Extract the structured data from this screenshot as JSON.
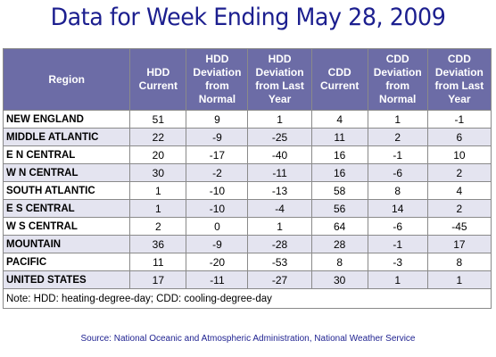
{
  "title": "Data for Week Ending May 28, 2009",
  "chart_data": {
    "type": "table",
    "title": "Data for Week Ending May 28, 2009",
    "columns": [
      "Region",
      "HDD Current",
      "HDD Deviation from Normal",
      "HDD Deviation from Last Year",
      "CDD Current",
      "CDD Deviation from Normal",
      "CDD Deviation from Last Year"
    ],
    "rows": [
      [
        "NEW ENGLAND",
        "51",
        "9",
        "1",
        "4",
        "1",
        "-1"
      ],
      [
        "MIDDLE ATLANTIC",
        "22",
        "-9",
        "-25",
        "11",
        "2",
        "6"
      ],
      [
        "E N CENTRAL",
        "20",
        "-17",
        "-40",
        "16",
        "-1",
        "10"
      ],
      [
        "W N CENTRAL",
        "30",
        "-2",
        "-11",
        "16",
        "-6",
        "2"
      ],
      [
        "SOUTH ATLANTIC",
        "1",
        "-10",
        "-13",
        "58",
        "8",
        "4"
      ],
      [
        "E S CENTRAL",
        "1",
        "-10",
        "-4",
        "56",
        "14",
        "2"
      ],
      [
        "W S CENTRAL",
        "2",
        "0",
        "1",
        "64",
        "-6",
        "-45"
      ],
      [
        "MOUNTAIN",
        "36",
        "-9",
        "-28",
        "28",
        "-1",
        "17"
      ],
      [
        "PACIFIC",
        "11",
        "-20",
        "-53",
        "8",
        "-3",
        "8"
      ],
      [
        "UNITED STATES",
        "17",
        "-11",
        "-27",
        "30",
        "1",
        "1"
      ]
    ]
  },
  "note": "Note: HDD: heating-degree-day; CDD: cooling-degree-day",
  "source": "Source:  National Oceanic and Atmospheric Administration, National Weather Service",
  "colors": {
    "title": "#1c1f8f",
    "header_bg": "#6c6ca6",
    "row_alt": "#e4e4f0"
  }
}
